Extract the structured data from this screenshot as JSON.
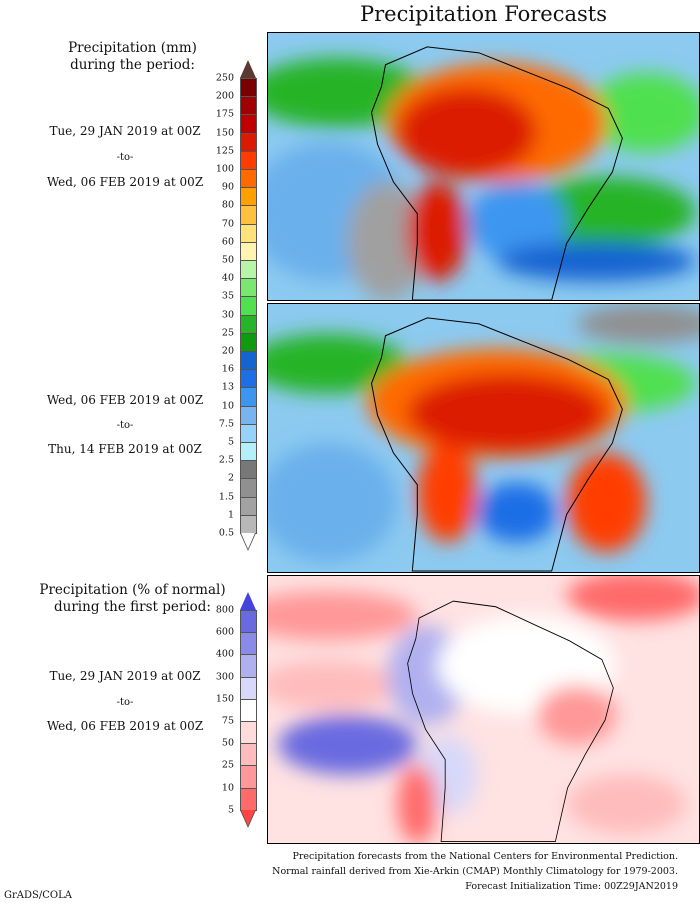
{
  "title": "Precipitation Forecasts",
  "period1": {
    "header_line1": "Precipitation (mm)",
    "header_line2": "during the period:",
    "start": "Tue, 29 JAN 2019 at 00Z",
    "to": "-to-",
    "end": "Wed, 06 FEB 2019 at 00Z"
  },
  "period2": {
    "start": "Wed, 06 FEB 2019 at 00Z",
    "to": "-to-",
    "end": "Thu, 14 FEB 2019 at 00Z"
  },
  "anomaly": {
    "header_line1": "Precipitation (% of normal)",
    "header_line2": "during the first period:",
    "start": "Tue, 29 JAN 2019 at 00Z",
    "to": "-to-",
    "end": "Wed, 06 FEB 2019 at 00Z"
  },
  "precip_scale": {
    "labels": [
      "250",
      "200",
      "175",
      "150",
      "125",
      "100",
      "90",
      "80",
      "70",
      "60",
      "50",
      "40",
      "35",
      "30",
      "25",
      "20",
      "16",
      "13",
      "10",
      "7.5",
      "5",
      "2.5",
      "2",
      "1.5",
      "1",
      "0.5"
    ],
    "colors": [
      "#7a0000",
      "#a00000",
      "#c00000",
      "#dc1a00",
      "#ff3c00",
      "#ff6a00",
      "#ffa000",
      "#ffc040",
      "#ffe27a",
      "#fff5b0",
      "#b8f5a8",
      "#78e870",
      "#50e050",
      "#28b428",
      "#0f9a0f",
      "#1464d2",
      "#1e6ee6",
      "#3c96f0",
      "#78b4f0",
      "#96d2fa",
      "#b4f0fa",
      "#787878",
      "#909090",
      "#a2a2a2",
      "#b8b8b8"
    ],
    "over_color": "#5a3a30",
    "under_color": "#ffffff"
  },
  "anomaly_scale": {
    "labels": [
      "800",
      "600",
      "400",
      "300",
      "150",
      "75",
      "50",
      "25",
      "10",
      "5"
    ],
    "colors": [
      "#6a6ae0",
      "#8a8ae8",
      "#b0b0f0",
      "#d8d8fa",
      "#ffffff",
      "#ffdcdc",
      "#ffbcbc",
      "#ff9898",
      "#ff6a6a"
    ],
    "over_color": "#4444dd",
    "under_color": "#ff4444"
  },
  "footer": {
    "line1": "Precipitation forecasts from the National Centers for Environmental Prediction.",
    "line2": "Normal rainfall derived from Xie-Arkin (CMAP) Monthly Climatology for 1979-2003.",
    "line3": "Forecast Initialization Time: 00Z29JAN2019"
  },
  "credit": "GrADS/COLA"
}
